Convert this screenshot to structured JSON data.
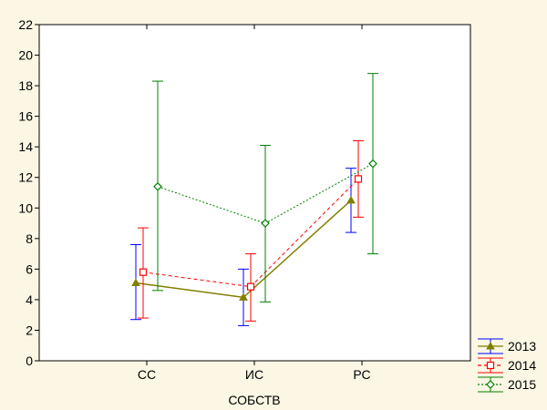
{
  "chart_data": {
    "type": "line",
    "title": "",
    "xlabel": "СОБСТВ",
    "ylabel": "",
    "categories": [
      "СС",
      "ИС",
      "РС"
    ],
    "ylim": [
      0,
      22
    ],
    "yticks": [
      0,
      2,
      4,
      6,
      8,
      10,
      12,
      14,
      16,
      18,
      20,
      22
    ],
    "grid": false,
    "legend_position": "bottom-right",
    "error_bars": true,
    "series": [
      {
        "name": "2013",
        "color": "#808000",
        "error_color": "#0000FF",
        "line_style": "solid",
        "marker": "triangle",
        "values": [
          5.1,
          4.15,
          10.5
        ],
        "lower": [
          2.7,
          2.3,
          8.4
        ],
        "upper": [
          7.6,
          6.0,
          12.6
        ]
      },
      {
        "name": "2014",
        "color": "#FF0000",
        "error_color": "#FF0000",
        "line_style": "dashed",
        "marker": "square",
        "values": [
          5.8,
          4.85,
          11.9
        ],
        "lower": [
          2.8,
          2.6,
          9.4
        ],
        "upper": [
          8.7,
          7.0,
          14.4
        ]
      },
      {
        "name": "2015",
        "color": "#008000",
        "error_color": "#008000",
        "line_style": "dotted",
        "marker": "diamond",
        "values": [
          11.4,
          9.0,
          12.9
        ],
        "lower": [
          4.6,
          3.85,
          7.0
        ],
        "upper": [
          18.3,
          14.1,
          18.8
        ]
      }
    ]
  }
}
